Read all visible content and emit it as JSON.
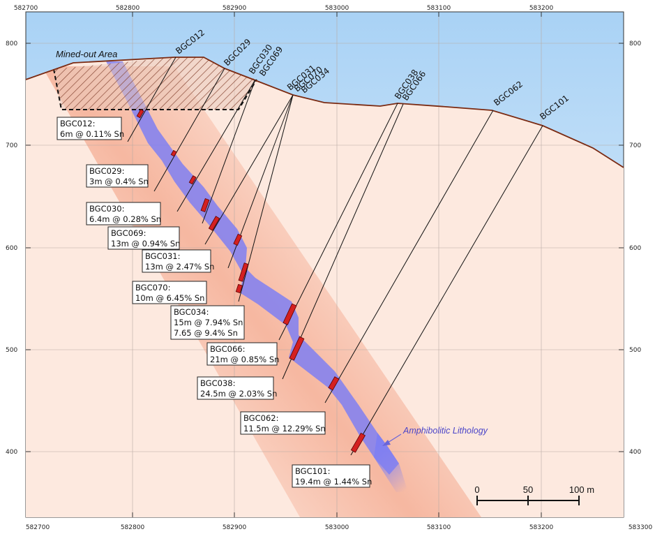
{
  "axes": {
    "x_ticks_top": [
      "582700",
      "582800",
      "582900",
      "583000",
      "583100",
      "583200"
    ],
    "x_ticks_bottom": [
      "582700",
      "582800",
      "582900",
      "583000",
      "583100",
      "583200",
      "583300"
    ],
    "y_ticks": [
      "800",
      "700",
      "600",
      "500",
      "400"
    ]
  },
  "labels": {
    "mined_out": "Mined-out Area",
    "lithology": "Amphibolitic Lithology"
  },
  "drillholes": [
    "BGC012",
    "BGC029",
    "BGC030",
    "BGC069",
    "BGC031",
    "BGC070",
    "BGC034",
    "BGC038",
    "BGC066",
    "BGC062",
    "BGC101"
  ],
  "intercepts": [
    {
      "lines": [
        "BGC012:",
        "6m @ 0.11% Sn"
      ]
    },
    {
      "lines": [
        "BGC029:",
        "3m @ 0.4% Sn"
      ]
    },
    {
      "lines": [
        "BGC030:",
        "6.4m @ 0.28% Sn"
      ]
    },
    {
      "lines": [
        "BGC069:",
        "13m @ 0.94% Sn"
      ]
    },
    {
      "lines": [
        "BGC031:",
        "13m @ 2.47% Sn"
      ]
    },
    {
      "lines": [
        "BGC070:",
        "10m @ 6.45% Sn"
      ]
    },
    {
      "lines": [
        "BGC034:",
        "15m @ 7.94% Sn",
        "7.65 @ 9.4% Sn"
      ]
    },
    {
      "lines": [
        "BGC066:",
        "21m @ 0.85% Sn"
      ]
    },
    {
      "lines": [
        "BGC038:",
        "24.5m @ 2.03% Sn"
      ]
    },
    {
      "lines": [
        "BGC062:",
        "11.5m @ 12.29% Sn"
      ]
    },
    {
      "lines": [
        "BGC101:",
        "19.4m @ 1.44% Sn"
      ]
    }
  ],
  "scale_bar": {
    "labels": [
      "0",
      "50",
      "100 m"
    ]
  },
  "colors": {
    "topography": "#7a2a12",
    "lithology": "#7f7ff2",
    "intercept": "#d42020",
    "sky_top": "#a9d2f5",
    "ground": "#fde9df",
    "mineral_zone": "#f6b8a0"
  }
}
